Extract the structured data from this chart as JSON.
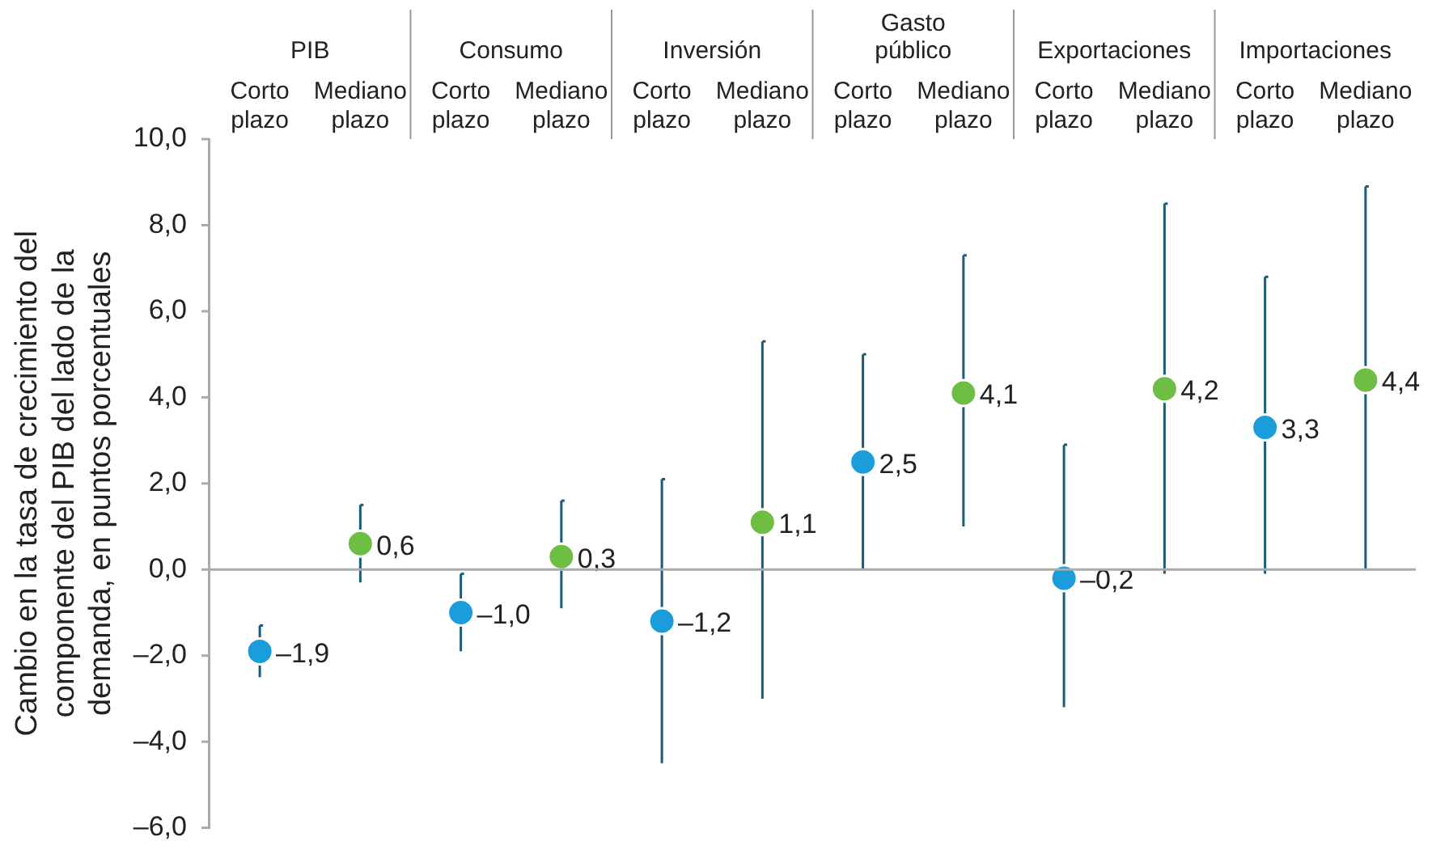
{
  "chart_data": {
    "type": "scatter",
    "ylabel": "Cambio en la tasa de crecimiento del componente del PIB del lado de la demanda, en puntos porcentuales",
    "annotations": [
      "PIB",
      "Consumo",
      "Inversión",
      "Gasto público",
      "Exportaciones",
      "Importaciones"
    ],
    "categories": [
      "Corto plazo",
      "Mediano plazo",
      "Corto plazo",
      "Mediano plazo",
      "Corto plazo",
      "Mediano plazo",
      "Corto plazo",
      "Mediano plazo",
      "Corto plazo",
      "Mediano plazo",
      "Corto plazo",
      "Mediano plazo"
    ],
    "values": [
      -1.9,
      0.6,
      -1.0,
      0.3,
      -1.2,
      1.1,
      2.5,
      4.1,
      -0.2,
      4.2,
      3.3,
      4.4
    ],
    "value_labels": [
      "–1,9",
      "0,6",
      "–1,0",
      "0,3",
      "–1,2",
      "1,1",
      "2,5",
      "4,1",
      "–0,2",
      "4,2",
      "3,3",
      "4,4"
    ],
    "colors": [
      "#1b9ddb",
      "#6fbe44",
      "#1b9ddb",
      "#6fbe44",
      "#1b9ddb",
      "#6fbe44",
      "#1b9ddb",
      "#6fbe44",
      "#1b9ddb",
      "#6fbe44",
      "#1b9ddb",
      "#6fbe44"
    ],
    "errors": [
      [
        -2.5,
        -1.3
      ],
      [
        -0.3,
        1.5
      ],
      [
        -1.9,
        -0.1
      ],
      [
        -0.9,
        1.6
      ],
      [
        -4.5,
        2.1
      ],
      [
        -3.0,
        5.3
      ],
      [
        0.0,
        5.0
      ],
      [
        1.0,
        7.3
      ],
      [
        -3.2,
        2.9
      ],
      [
        -0.1,
        8.5
      ],
      [
        -0.1,
        6.8
      ],
      [
        0.0,
        8.9
      ]
    ],
    "ylim": [
      -6,
      10
    ],
    "yticks": [
      {
        "value": -6,
        "label": "–6,0"
      },
      {
        "value": -4,
        "label": "–4,0"
      },
      {
        "value": -2,
        "label": "–2,0"
      },
      {
        "value": 0,
        "label": "0,0"
      },
      {
        "value": 2,
        "label": "2,0"
      },
      {
        "value": 4,
        "label": "4,0"
      },
      {
        "value": 6,
        "label": "6,0"
      },
      {
        "value": 8,
        "label": "8,0"
      },
      {
        "value": 10,
        "label": "10,0"
      }
    ],
    "ref_lines": [
      {
        "axis": "y",
        "value": 0,
        "color": "#aaaaaa"
      }
    ],
    "marker": "circle",
    "grid": false,
    "legend": false
  }
}
